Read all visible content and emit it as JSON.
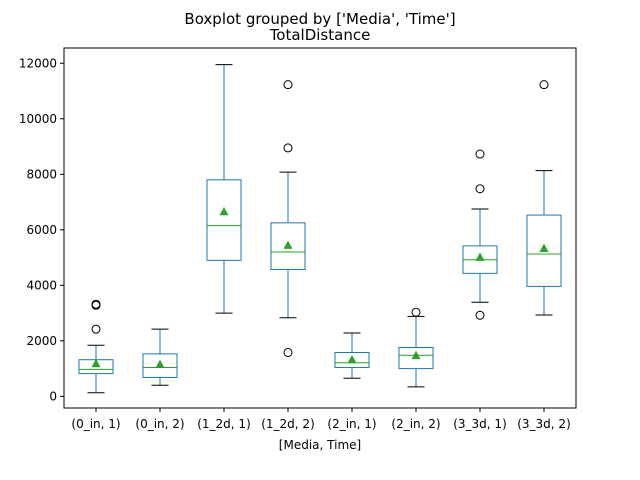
{
  "chart_data": {
    "type": "boxplot",
    "suptitle": "Boxplot grouped by ['Media', 'Time']",
    "title": "TotalDistance",
    "xlabel": "[Media, Time]",
    "ylabel": "",
    "ylim": [
      -420,
      12550
    ],
    "yticks": [
      0,
      2000,
      4000,
      6000,
      8000,
      10000,
      12000
    ],
    "ytick_labels": [
      "0",
      "2000",
      "4000",
      "6000",
      "8000",
      "10000",
      "12000"
    ],
    "grid": false,
    "colors": {
      "box": "#1f77b4",
      "median": "#2ca02c",
      "mean": "#2ca02c",
      "outlier": "#000000"
    },
    "categories": [
      "(0_in, 1)",
      "(0_in, 2)",
      "(1_2d, 1)",
      "(1_2d, 2)",
      "(2_in, 1)",
      "(2_in, 2)",
      "(3_3d, 1)",
      "(3_3d, 2)"
    ],
    "boxes": [
      {
        "whislo": 130,
        "q1": 820,
        "med": 970,
        "q3": 1320,
        "whishi": 1840,
        "mean": 1190,
        "fliers": [
          2420,
          3280,
          3320
        ]
      },
      {
        "whislo": 400,
        "q1": 680,
        "med": 1040,
        "q3": 1530,
        "whishi": 2420,
        "mean": 1160,
        "fliers": []
      },
      {
        "whislo": 3000,
        "q1": 4900,
        "med": 6150,
        "q3": 7800,
        "whishi": 11950,
        "mean": 6660,
        "fliers": []
      },
      {
        "whislo": 2830,
        "q1": 4570,
        "med": 5200,
        "q3": 6250,
        "whishi": 8080,
        "mean": 5450,
        "fliers": [
          1580,
          8950,
          11230
        ]
      },
      {
        "whislo": 650,
        "q1": 1040,
        "med": 1210,
        "q3": 1580,
        "whishi": 2280,
        "mean": 1330,
        "fliers": []
      },
      {
        "whislo": 340,
        "q1": 1000,
        "med": 1480,
        "q3": 1760,
        "whishi": 2880,
        "mean": 1480,
        "fliers": [
          3030
        ]
      },
      {
        "whislo": 3390,
        "q1": 4430,
        "med": 4920,
        "q3": 5420,
        "whishi": 6750,
        "mean": 5020,
        "fliers": [
          2920,
          7480,
          8730
        ]
      },
      {
        "whislo": 2930,
        "q1": 3960,
        "med": 5130,
        "q3": 6530,
        "whishi": 8130,
        "mean": 5340,
        "fliers": [
          11230
        ]
      }
    ]
  }
}
